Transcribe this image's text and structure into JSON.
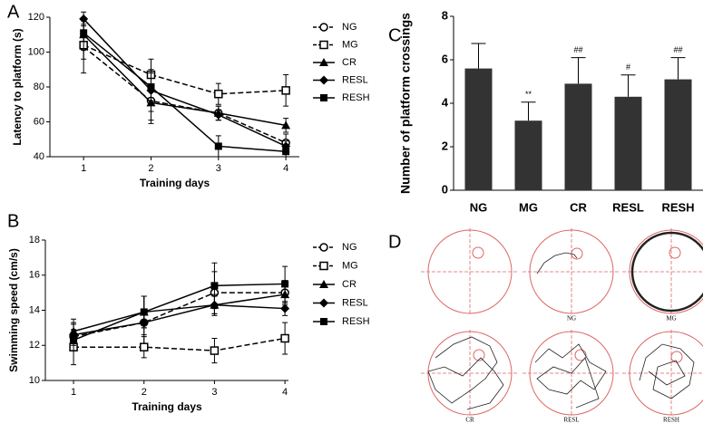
{
  "chart_data": [
    {
      "type": "line",
      "panel": "A",
      "x_label": "Training days",
      "y_label": "Latency to platform (s)",
      "x": [
        1,
        2,
        3,
        4
      ],
      "xlim": [
        0.5,
        4.2
      ],
      "xticks": [
        1,
        2,
        3,
        4
      ],
      "ylim": [
        40,
        120
      ],
      "yticks": [
        40,
        60,
        80,
        100,
        120
      ],
      "series": [
        {
          "name": "NG",
          "color": "#000000",
          "marker": "circle-open",
          "dashed": true,
          "values": [
            103,
            72,
            65,
            48
          ],
          "errors": [
            15,
            13,
            4,
            5
          ]
        },
        {
          "name": "MG",
          "color": "#000000",
          "marker": "square-open",
          "dashed": true,
          "values": [
            104,
            87,
            76,
            78
          ],
          "errors": [
            8,
            9,
            6,
            9
          ]
        },
        {
          "name": "CR",
          "color": "#000000",
          "marker": "triangle",
          "dashed": false,
          "values": [
            110,
            71,
            65,
            58
          ],
          "errors": [
            8,
            10,
            4,
            4
          ]
        },
        {
          "name": "RESL",
          "color": "#000000",
          "marker": "diamond",
          "dashed": false,
          "values": [
            119,
            78,
            64,
            46
          ],
          "errors": [
            4,
            12,
            3,
            3
          ]
        },
        {
          "name": "RESH",
          "color": "#000000",
          "marker": "square",
          "dashed": false,
          "values": [
            111,
            80,
            46,
            43
          ],
          "errors": [
            5,
            8,
            6,
            3
          ]
        }
      ]
    },
    {
      "type": "line",
      "panel": "B",
      "x_label": "Training days",
      "y_label": "Swimming speed (cm/s)",
      "x": [
        1,
        2,
        3,
        4
      ],
      "xlim": [
        0.6,
        4.05
      ],
      "xticks": [
        1,
        2,
        3,
        4
      ],
      "ylim": [
        10,
        18
      ],
      "yticks": [
        10,
        12,
        14,
        16,
        18
      ],
      "series": [
        {
          "name": "NG",
          "color": "#000000",
          "marker": "circle-open",
          "dashed": true,
          "values": [
            12.5,
            13.3,
            15.0,
            15.0
          ],
          "errors": [
            0.8,
            1.5,
            1.2,
            0.7
          ]
        },
        {
          "name": "MG",
          "color": "#000000",
          "marker": "square-open",
          "dashed": true,
          "values": [
            11.9,
            11.9,
            11.7,
            12.4
          ],
          "errors": [
            1.0,
            0.6,
            0.7,
            0.9
          ]
        },
        {
          "name": "CR",
          "color": "#000000",
          "marker": "triangle",
          "dashed": false,
          "values": [
            12.8,
            13.9,
            14.3,
            14.9
          ],
          "errors": [
            0.7,
            0.9,
            0.6,
            0.5
          ]
        },
        {
          "name": "RESL",
          "color": "#000000",
          "marker": "diamond",
          "dashed": false,
          "values": [
            12.6,
            13.3,
            14.3,
            14.1
          ],
          "errors": [
            0.6,
            0.7,
            0.5,
            0.4
          ]
        },
        {
          "name": "RESH",
          "color": "#000000",
          "marker": "square",
          "dashed": false,
          "values": [
            12.3,
            13.9,
            15.4,
            15.5
          ],
          "errors": [
            0.6,
            0.9,
            1.3,
            1.0
          ]
        }
      ]
    },
    {
      "type": "bar",
      "panel": "C",
      "y_label": "Number of platform crossings",
      "categories": [
        "NG",
        "MG",
        "CR",
        "RESL",
        "RESH"
      ],
      "values": [
        5.6,
        3.2,
        4.9,
        4.3,
        5.1
      ],
      "errors": [
        1.15,
        0.85,
        1.2,
        1.0,
        1.0
      ],
      "annotations": [
        null,
        "**",
        "##",
        "#",
        "##"
      ],
      "color": "#333333",
      "ylim": [
        0,
        8
      ],
      "yticks": [
        0,
        2,
        4,
        6,
        8
      ]
    }
  ],
  "track_panel": {
    "label": "D",
    "captions": [
      "NG",
      "MG",
      "CR",
      "RESL",
      "RESH"
    ]
  }
}
